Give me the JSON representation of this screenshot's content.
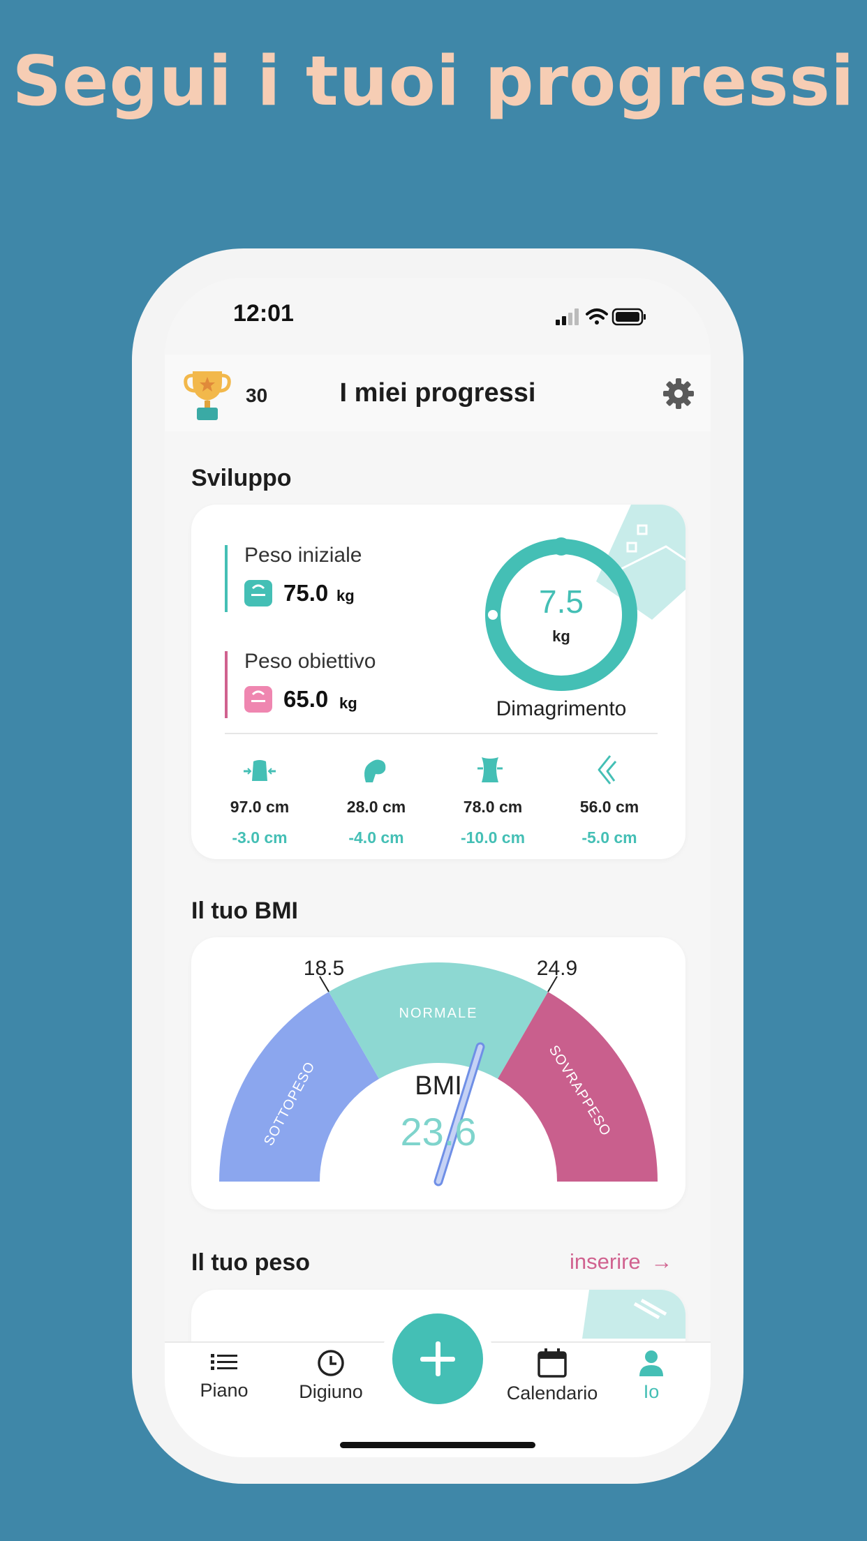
{
  "headline": "Segui i tuoi progressi",
  "status": {
    "time": "12:01"
  },
  "header": {
    "trophy_count": "30",
    "title": "I miei progressi"
  },
  "sviluppo": {
    "title": "Sviluppo",
    "initial_label": "Peso iniziale",
    "initial_value": "75.0",
    "initial_unit": "kg",
    "goal_label": "Peso obiettivo",
    "goal_value": "65.0",
    "goal_unit": "kg",
    "ring_value": "7.5",
    "ring_unit": "kg",
    "ring_label": "Dimagrimento",
    "measurements": [
      {
        "value": "97.0 cm",
        "diff": "-3.0 cm",
        "icon": "chest-icon"
      },
      {
        "value": "28.0 cm",
        "diff": "-4.0 cm",
        "icon": "arm-icon"
      },
      {
        "value": "78.0 cm",
        "diff": "-10.0 cm",
        "icon": "waist-icon"
      },
      {
        "value": "56.0 cm",
        "diff": "-5.0 cm",
        "icon": "leg-icon"
      }
    ]
  },
  "bmi": {
    "title": "Il tuo BMI",
    "low_threshold": "18.5",
    "high_threshold": "24.9",
    "zone_under": "SOTTOPESO",
    "zone_normal": "NORMALE",
    "zone_over": "SOVRAPPESO",
    "label": "BMI",
    "value": "23.6"
  },
  "weight": {
    "title": "Il tuo peso",
    "action": "inserire"
  },
  "nav": {
    "plan": "Piano",
    "fasting": "Digiuno",
    "calendar": "Calendario",
    "me": "Io"
  },
  "colors": {
    "accent": "#44bfb5",
    "goal": "#d0628f",
    "under": "#8ba6ee",
    "normal": "#8dd8d2",
    "over": "#c95f8d",
    "headline": "#f6cdb4"
  }
}
